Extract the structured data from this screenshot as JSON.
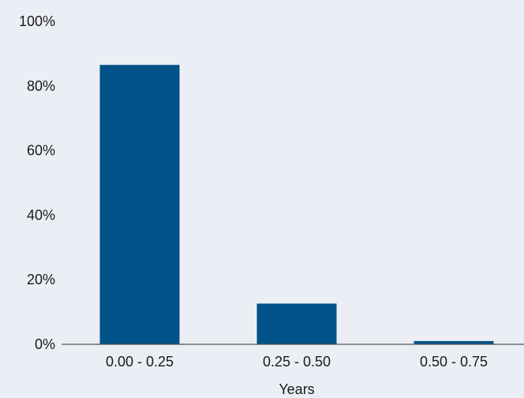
{
  "colors": {
    "background": "#ebeef4",
    "bar": "#005288",
    "axis": "#555555",
    "text": "#1a1a1a"
  },
  "chart_data": {
    "type": "bar",
    "title": "",
    "xlabel": "Years",
    "ylabel": "",
    "categories": [
      "0.00 - 0.25",
      "0.25 - 0.50",
      "0.50 - 0.75"
    ],
    "values": [
      86.5,
      12.6,
      1.0
    ],
    "ylim": [
      0,
      100
    ],
    "y_ticks": [
      0,
      20,
      40,
      60,
      80,
      100
    ],
    "y_tick_labels": [
      "0%",
      "20%",
      "40%",
      "60%",
      "80%",
      "100%"
    ],
    "grid": false,
    "legend": "none"
  }
}
